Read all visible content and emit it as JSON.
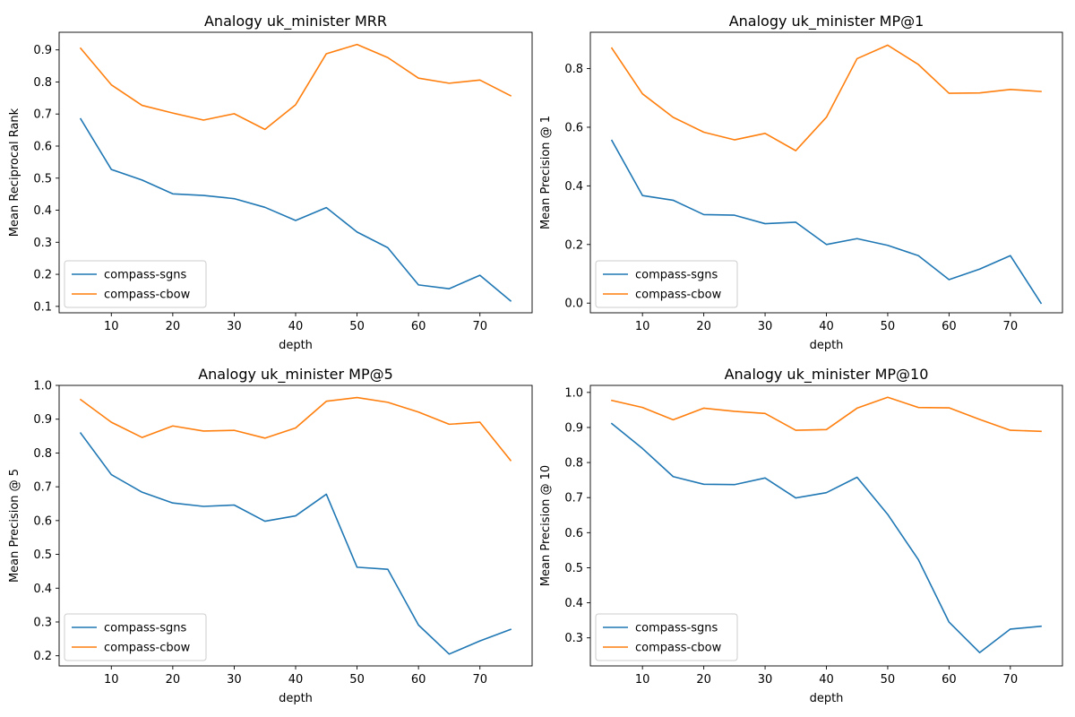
{
  "figure": {
    "series_colors": [
      "#1f77b4",
      "#ff7f0e"
    ],
    "legend_location": "lower-left",
    "grid": false
  },
  "chart_data": [
    {
      "type": "line",
      "title": "Analogy uk_minister MRR",
      "xlabel": "depth",
      "ylabel": "Mean Reciprocal Rank",
      "xlim": [
        1.5,
        78.5
      ],
      "ylim": [
        0.08,
        0.955
      ],
      "xticks": [
        10,
        20,
        30,
        40,
        50,
        60,
        70
      ],
      "yticks": [
        0.1,
        0.2,
        0.3,
        0.4,
        0.5,
        0.6,
        0.7,
        0.8,
        0.9
      ],
      "tick_decimals": 1,
      "x": [
        5,
        10,
        15,
        20,
        25,
        30,
        35,
        40,
        45,
        50,
        55,
        60,
        65,
        70,
        75
      ],
      "series": [
        {
          "name": "compass-sgns",
          "color": "#1f77b4",
          "values": [
            0.685,
            0.527,
            0.494,
            0.451,
            0.446,
            0.436,
            0.409,
            0.368,
            0.408,
            0.332,
            0.283,
            0.167,
            0.155,
            0.197,
            0.117
          ]
        },
        {
          "name": "compass-cbow",
          "color": "#ff7f0e",
          "values": [
            0.905,
            0.791,
            0.727,
            0.703,
            0.681,
            0.701,
            0.652,
            0.729,
            0.888,
            0.917,
            0.876,
            0.812,
            0.796,
            0.806,
            0.757
          ]
        }
      ]
    },
    {
      "type": "line",
      "title": "Analogy uk_minister MP@1",
      "xlabel": "depth",
      "ylabel": "Mean Precision @ 1",
      "xlim": [
        1.5,
        78.5
      ],
      "ylim": [
        -0.033,
        0.924
      ],
      "xticks": [
        10,
        20,
        30,
        40,
        50,
        60,
        70
      ],
      "yticks": [
        0.0,
        0.2,
        0.4,
        0.6,
        0.8
      ],
      "tick_decimals": 1,
      "x": [
        5,
        10,
        15,
        20,
        25,
        30,
        35,
        40,
        45,
        50,
        55,
        60,
        65,
        70,
        75
      ],
      "series": [
        {
          "name": "compass-sgns",
          "color": "#1f77b4",
          "values": [
            0.555,
            0.367,
            0.351,
            0.302,
            0.3,
            0.271,
            0.276,
            0.2,
            0.22,
            0.197,
            0.162,
            0.08,
            0.116,
            0.162,
            0.0
          ]
        },
        {
          "name": "compass-cbow",
          "color": "#ff7f0e",
          "values": [
            0.87,
            0.714,
            0.634,
            0.583,
            0.557,
            0.579,
            0.52,
            0.634,
            0.834,
            0.88,
            0.814,
            0.716,
            0.717,
            0.729,
            0.722
          ]
        }
      ]
    },
    {
      "type": "line",
      "title": "Analogy uk_minister MP@5",
      "xlabel": "depth",
      "ylabel": "Mean Precision @ 5",
      "xlim": [
        1.5,
        78.5
      ],
      "ylim": [
        0.17,
        1.0
      ],
      "xticks": [
        10,
        20,
        30,
        40,
        50,
        60,
        70
      ],
      "yticks": [
        0.2,
        0.3,
        0.4,
        0.5,
        0.6,
        0.7,
        0.8,
        0.9,
        1.0
      ],
      "tick_decimals": 1,
      "x": [
        5,
        10,
        15,
        20,
        25,
        30,
        35,
        40,
        45,
        50,
        55,
        60,
        65,
        70,
        75
      ],
      "series": [
        {
          "name": "compass-sgns",
          "color": "#1f77b4",
          "values": [
            0.859,
            0.736,
            0.684,
            0.652,
            0.642,
            0.646,
            0.598,
            0.614,
            0.678,
            0.462,
            0.456,
            0.291,
            0.205,
            0.244,
            0.278
          ]
        },
        {
          "name": "compass-cbow",
          "color": "#ff7f0e",
          "values": [
            0.958,
            0.891,
            0.846,
            0.88,
            0.865,
            0.867,
            0.844,
            0.874,
            0.953,
            0.964,
            0.95,
            0.921,
            0.885,
            0.891,
            0.778
          ]
        }
      ]
    },
    {
      "type": "line",
      "title": "Analogy uk_minister MP@10",
      "xlabel": "depth",
      "ylabel": "Mean Precision @ 10",
      "xlim": [
        1.5,
        78.5
      ],
      "ylim": [
        0.22,
        1.02
      ],
      "xticks": [
        10,
        20,
        30,
        40,
        50,
        60,
        70
      ],
      "yticks": [
        0.3,
        0.4,
        0.5,
        0.6,
        0.7,
        0.8,
        0.9,
        1.0
      ],
      "tick_decimals": 1,
      "x": [
        5,
        10,
        15,
        20,
        25,
        30,
        35,
        40,
        45,
        50,
        55,
        60,
        65,
        70,
        75
      ],
      "series": [
        {
          "name": "compass-sgns",
          "color": "#1f77b4",
          "values": [
            0.911,
            0.84,
            0.76,
            0.738,
            0.737,
            0.756,
            0.699,
            0.714,
            0.758,
            0.652,
            0.523,
            0.345,
            0.258,
            0.325,
            0.333
          ]
        },
        {
          "name": "compass-cbow",
          "color": "#ff7f0e",
          "values": [
            0.977,
            0.957,
            0.922,
            0.955,
            0.946,
            0.94,
            0.892,
            0.894,
            0.955,
            0.986,
            0.957,
            0.956,
            0.923,
            0.892,
            0.889
          ]
        }
      ]
    }
  ]
}
